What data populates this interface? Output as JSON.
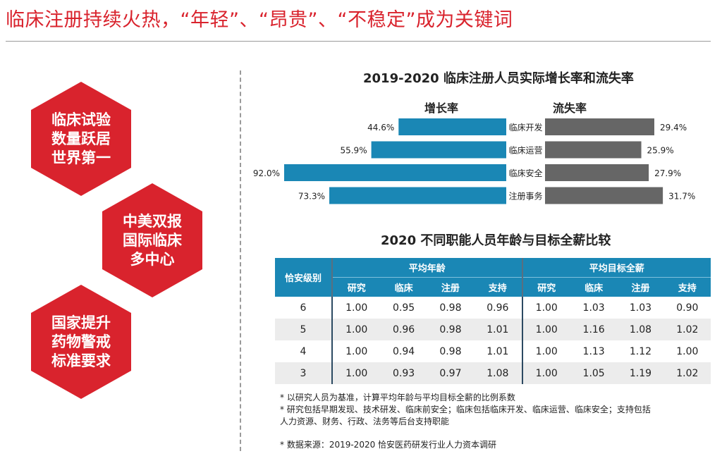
{
  "page": {
    "title": "临床注册持续火热，“年轻”、“昂贵”、“不稳定”成为关键词"
  },
  "hexagons": [
    {
      "text": "临床试验\n数量跃居\n世界第一"
    },
    {
      "text": "中美双报\n国际临床\n多中心"
    },
    {
      "text": "国家提升\n药物警戒\n标准要求"
    }
  ],
  "colors": {
    "red": "#d9232d",
    "blue": "#1a87b5",
    "gray": "#666666"
  },
  "chart_data": {
    "type": "bar",
    "title": "2019-2020 临床注册人员实际增长率和流失率",
    "categories": [
      "临床开发",
      "临床运营",
      "临床安全",
      "注册事务"
    ],
    "series": [
      {
        "name": "增长率",
        "values": [
          44.6,
          55.9,
          92.0,
          73.3
        ],
        "labels": [
          "44.6%",
          "55.9%",
          "92.0%",
          "73.3%"
        ],
        "color": "#1a87b5"
      },
      {
        "name": "流失率",
        "values": [
          29.4,
          25.9,
          27.9,
          31.7
        ],
        "labels": [
          "29.4%",
          "25.9%",
          "27.9%",
          "31.7%"
        ],
        "color": "#666666"
      }
    ],
    "unit": "%"
  },
  "table": {
    "title": "2020 不同职能人员年龄与目标全薪比较",
    "row_header": "恰安级别",
    "groups": [
      "平均年龄",
      "平均目标全薪"
    ],
    "sub_headers": [
      "研究",
      "临床",
      "注册",
      "支持",
      "研究",
      "临床",
      "注册",
      "支持"
    ],
    "rows": [
      {
        "level": "6",
        "values": [
          "1.00",
          "0.95",
          "0.98",
          "0.96",
          "1.00",
          "1.03",
          "1.03",
          "0.90"
        ]
      },
      {
        "level": "5",
        "values": [
          "1.00",
          "0.96",
          "0.98",
          "1.01",
          "1.00",
          "1.16",
          "1.08",
          "1.02"
        ]
      },
      {
        "level": "4",
        "values": [
          "1.00",
          "0.94",
          "0.98",
          "1.01",
          "1.00",
          "1.13",
          "1.12",
          "1.00"
        ]
      },
      {
        "level": "3",
        "values": [
          "1.00",
          "0.93",
          "0.97",
          "1.08",
          "1.00",
          "1.05",
          "1.19",
          "1.02"
        ]
      }
    ]
  },
  "notes": [
    "* 以研究人员为基准，计算平均年龄与平均目标全薪的比例系数",
    "* 研究包括早期发现、技术研发、临床前安全；临床包括临床开发、临床运营、临床安全；支持包括",
    "人力资源、财务、行政、法务等后台支持职能"
  ],
  "source": "* 数据来源：2019-2020 恰安医药研发行业人力资本调研"
}
